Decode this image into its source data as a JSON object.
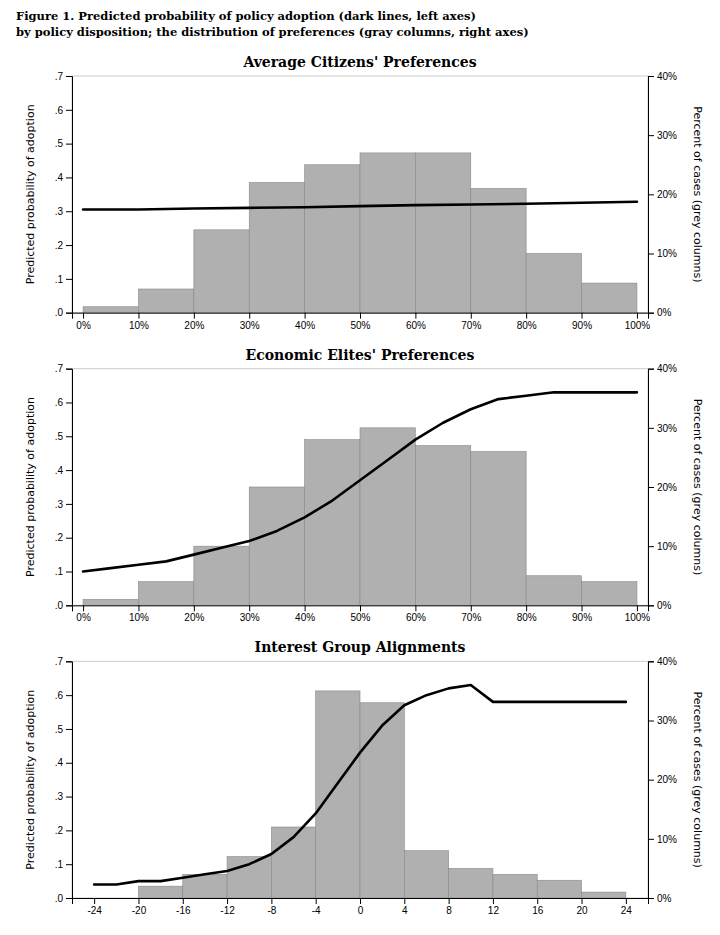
{
  "title": "Figure 1. Predicted probability of policy adoption (dark lines, left axes)",
  "subtitle": "by policy disposition; the distribution of preferences (gray columns, right axes)",
  "chart_data": [
    {
      "type": "histogram",
      "title": "Average Citizens' Preferences",
      "ylabel": "Predicted probability of adoption",
      "y2label": "Percent of cases (grey columns)",
      "grid": false,
      "xlim": [
        -2,
        102
      ],
      "xticks": [
        {
          "value": 0,
          "label": "0%"
        },
        {
          "value": 10,
          "label": "10%"
        },
        {
          "value": 20,
          "label": "20%"
        },
        {
          "value": 30,
          "label": "30%"
        },
        {
          "value": 40,
          "label": "40%"
        },
        {
          "value": 50,
          "label": "50%"
        },
        {
          "value": 60,
          "label": "60%"
        },
        {
          "value": 70,
          "label": "70%"
        },
        {
          "value": 80,
          "label": "80%"
        },
        {
          "value": 90,
          "label": "90%"
        },
        {
          "value": 100,
          "label": "100%"
        }
      ],
      "ylim": [
        0,
        0.7
      ],
      "yticks": [
        {
          "value": 0.0,
          "label": ".0"
        },
        {
          "value": 0.1,
          "label": ".1"
        },
        {
          "value": 0.2,
          "label": ".2"
        },
        {
          "value": 0.3,
          "label": ".3"
        },
        {
          "value": 0.4,
          "label": ".4"
        },
        {
          "value": 0.5,
          "label": ".5"
        },
        {
          "value": 0.6,
          "label": ".6"
        },
        {
          "value": 0.7,
          "label": ".7"
        }
      ],
      "y2lim": [
        0,
        40
      ],
      "y2ticks": [
        {
          "value": 0,
          "label": "0%"
        },
        {
          "value": 10,
          "label": "10%"
        },
        {
          "value": 20,
          "label": "20%"
        },
        {
          "value": 30,
          "label": "30%"
        },
        {
          "value": 40,
          "label": "40%"
        }
      ],
      "series": [
        {
          "type": "histogram",
          "axis": "y2",
          "color": "#b0b0b0",
          "bins": [
            0,
            10,
            20,
            30,
            40,
            50,
            60,
            70,
            80,
            90,
            100
          ],
          "values": [
            1,
            4,
            14,
            22,
            25,
            27,
            27,
            21,
            10,
            5
          ]
        },
        {
          "type": "line",
          "color": "#000000",
          "x": [
            0,
            10,
            20,
            30,
            40,
            50,
            60,
            70,
            80,
            90,
            100
          ],
          "values": [
            0.305,
            0.305,
            0.308,
            0.31,
            0.312,
            0.315,
            0.318,
            0.32,
            0.322,
            0.325,
            0.328
          ]
        }
      ]
    },
    {
      "type": "histogram",
      "title": "Economic Elites' Preferences",
      "ylabel": "Predicted probability of adoption",
      "y2label": "Percent of cases (grey columns)",
      "grid": false,
      "xlim": [
        -2,
        102
      ],
      "xticks": [
        {
          "value": 0,
          "label": "0%"
        },
        {
          "value": 10,
          "label": "10%"
        },
        {
          "value": 20,
          "label": "20%"
        },
        {
          "value": 30,
          "label": "30%"
        },
        {
          "value": 40,
          "label": "40%"
        },
        {
          "value": 50,
          "label": "50%"
        },
        {
          "value": 60,
          "label": "60%"
        },
        {
          "value": 70,
          "label": "70%"
        },
        {
          "value": 80,
          "label": "80%"
        },
        {
          "value": 90,
          "label": "90%"
        },
        {
          "value": 100,
          "label": "100%"
        }
      ],
      "ylim": [
        0,
        0.7
      ],
      "yticks": [
        {
          "value": 0.0,
          "label": ".0"
        },
        {
          "value": 0.1,
          "label": ".1"
        },
        {
          "value": 0.2,
          "label": ".2"
        },
        {
          "value": 0.3,
          "label": ".3"
        },
        {
          "value": 0.4,
          "label": ".4"
        },
        {
          "value": 0.5,
          "label": ".5"
        },
        {
          "value": 0.6,
          "label": ".6"
        },
        {
          "value": 0.7,
          "label": ".7"
        }
      ],
      "y2lim": [
        0,
        40
      ],
      "y2ticks": [
        {
          "value": 0,
          "label": "0%"
        },
        {
          "value": 10,
          "label": "10%"
        },
        {
          "value": 20,
          "label": "20%"
        },
        {
          "value": 30,
          "label": "30%"
        },
        {
          "value": 40,
          "label": "40%"
        }
      ],
      "series": [
        {
          "type": "histogram",
          "axis": "y2",
          "color": "#b0b0b0",
          "bins": [
            0,
            10,
            20,
            30,
            40,
            50,
            60,
            70,
            80,
            90,
            100
          ],
          "values": [
            1,
            4,
            10,
            20,
            28,
            30,
            27,
            26,
            5,
            4
          ]
        },
        {
          "type": "line",
          "color": "#000000",
          "x": [
            0,
            5,
            10,
            15,
            20,
            25,
            30,
            35,
            40,
            45,
            50,
            55,
            60,
            65,
            70,
            75,
            80,
            85,
            90,
            95,
            100
          ],
          "values": [
            0.1,
            0.11,
            0.12,
            0.13,
            0.15,
            0.17,
            0.19,
            0.22,
            0.26,
            0.31,
            0.37,
            0.43,
            0.49,
            0.54,
            0.58,
            0.61,
            0.62,
            0.63,
            0.63,
            0.63,
            0.63
          ]
        }
      ]
    },
    {
      "type": "histogram",
      "title": "Interest Group Alignments",
      "ylabel": "Predicted probability of adoption",
      "y2label": "Percent of cases (grey columns)",
      "grid": false,
      "xlim": [
        -26,
        26
      ],
      "xticks": [
        -24,
        -20,
        -16,
        -12,
        -8,
        -4,
        0,
        4,
        8,
        12,
        16,
        20,
        24
      ],
      "ylim": [
        0,
        0.7
      ],
      "yticks": [
        {
          "value": 0.0,
          "label": ".0"
        },
        {
          "value": 0.1,
          "label": ".1"
        },
        {
          "value": 0.2,
          "label": ".2"
        },
        {
          "value": 0.3,
          "label": ".3"
        },
        {
          "value": 0.4,
          "label": ".4"
        },
        {
          "value": 0.5,
          "label": ".5"
        },
        {
          "value": 0.6,
          "label": ".6"
        },
        {
          "value": 0.7,
          "label": ".7"
        }
      ],
      "y2lim": [
        0,
        40
      ],
      "y2ticks": [
        {
          "value": 0,
          "label": "0%"
        },
        {
          "value": 10,
          "label": "10%"
        },
        {
          "value": 20,
          "label": "20%"
        },
        {
          "value": 30,
          "label": "30%"
        },
        {
          "value": 40,
          "label": "40%"
        }
      ],
      "series": [
        {
          "type": "histogram",
          "axis": "y2",
          "color": "#b0b0b0",
          "bins": [
            -24,
            -20,
            -16,
            -12,
            -8,
            -4,
            0,
            4,
            8,
            12,
            16,
            20,
            24
          ],
          "values": [
            0,
            2,
            4,
            7,
            12,
            35,
            33,
            8,
            5,
            4,
            3,
            1
          ]
        },
        {
          "type": "line",
          "color": "#000000",
          "x": [
            -24,
            -22,
            -20,
            -18,
            -16,
            -14,
            -12,
            -10,
            -8,
            -6,
            -4,
            -2,
            0,
            2,
            4,
            6,
            8,
            10,
            12,
            14,
            16,
            18,
            20,
            22,
            24
          ],
          "values": [
            0.04,
            0.04,
            0.05,
            0.05,
            0.06,
            0.07,
            0.08,
            0.1,
            0.13,
            0.18,
            0.25,
            0.34,
            0.43,
            0.51,
            0.57,
            0.6,
            0.62,
            0.63,
            0.58,
            0.58,
            0.58,
            0.58,
            0.58,
            0.58,
            0.58
          ]
        }
      ]
    }
  ]
}
